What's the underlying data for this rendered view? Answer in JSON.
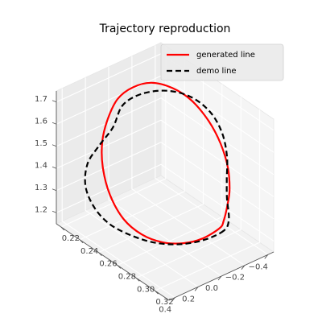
{
  "chart_data": {
    "type": "line",
    "projection": "3d",
    "title": "Trajectory reproduction",
    "xlabel": "",
    "ylabel": "",
    "zlabel": "",
    "grid": true,
    "legend_position": "top-right",
    "axes": {
      "x": {
        "ticks": [
          0.22,
          0.24,
          0.26,
          0.28,
          0.3,
          0.32
        ],
        "tick_labels": [
          "0.22",
          "0.24",
          "0.26",
          "0.28",
          "0.30",
          "0.32"
        ],
        "range": [
          0.215,
          0.335
        ]
      },
      "y": {
        "ticks": [
          -0.4,
          -0.2,
          0.0,
          0.2,
          0.4
        ],
        "tick_labels": [
          "−0.4",
          "−0.2",
          "0.0",
          "0.2",
          "0.4"
        ],
        "range": [
          -0.45,
          0.45
        ]
      },
      "z": {
        "ticks": [
          1.2,
          1.3,
          1.4,
          1.5,
          1.6,
          1.7
        ],
        "tick_labels": [
          "1.2",
          "1.3",
          "1.4",
          "1.5",
          "1.6",
          "1.7"
        ],
        "range": [
          1.15,
          1.75
        ]
      }
    },
    "series": [
      {
        "name": "generated line",
        "color": "#ff0000",
        "style": "solid",
        "x": [
          0.306,
          0.3,
          0.292,
          0.282,
          0.27,
          0.258,
          0.246,
          0.236,
          0.228,
          0.224,
          0.222,
          0.226,
          0.236,
          0.252,
          0.27,
          0.288,
          0.302,
          0.311,
          0.314,
          0.312,
          0.309,
          0.306
        ],
        "y": [
          -0.22,
          -0.12,
          -0.02,
          0.08,
          0.16,
          0.22,
          0.24,
          0.22,
          0.16,
          0.08,
          -0.02,
          -0.12,
          -0.2,
          -0.25,
          -0.27,
          -0.27,
          -0.26,
          -0.25,
          -0.24,
          -0.235,
          -0.23,
          -0.22
        ],
        "z": [
          1.23,
          1.19,
          1.17,
          1.17,
          1.19,
          1.24,
          1.32,
          1.41,
          1.49,
          1.56,
          1.62,
          1.66,
          1.69,
          1.7,
          1.69,
          1.65,
          1.59,
          1.51,
          1.42,
          1.34,
          1.27,
          1.23
        ]
      },
      {
        "name": "demo line",
        "color": "#000000",
        "style": "dashed",
        "x": [
          0.308,
          0.3,
          0.29,
          0.278,
          0.266,
          0.252,
          0.24,
          0.23,
          0.226,
          0.228,
          0.232,
          0.23,
          0.238,
          0.252,
          0.27,
          0.288,
          0.302,
          0.31,
          0.311,
          0.31,
          0.312,
          0.308
        ],
        "y": [
          -0.24,
          -0.14,
          -0.02,
          0.1,
          0.2,
          0.28,
          0.32,
          0.32,
          0.27,
          0.18,
          0.1,
          0.0,
          -0.1,
          -0.2,
          -0.26,
          -0.28,
          -0.27,
          -0.25,
          -0.24,
          -0.25,
          -0.25,
          -0.24
        ],
        "z": [
          1.22,
          1.18,
          1.16,
          1.16,
          1.18,
          1.21,
          1.26,
          1.33,
          1.41,
          1.48,
          1.55,
          1.62,
          1.67,
          1.7,
          1.71,
          1.69,
          1.64,
          1.56,
          1.46,
          1.37,
          1.28,
          1.22
        ]
      }
    ]
  }
}
